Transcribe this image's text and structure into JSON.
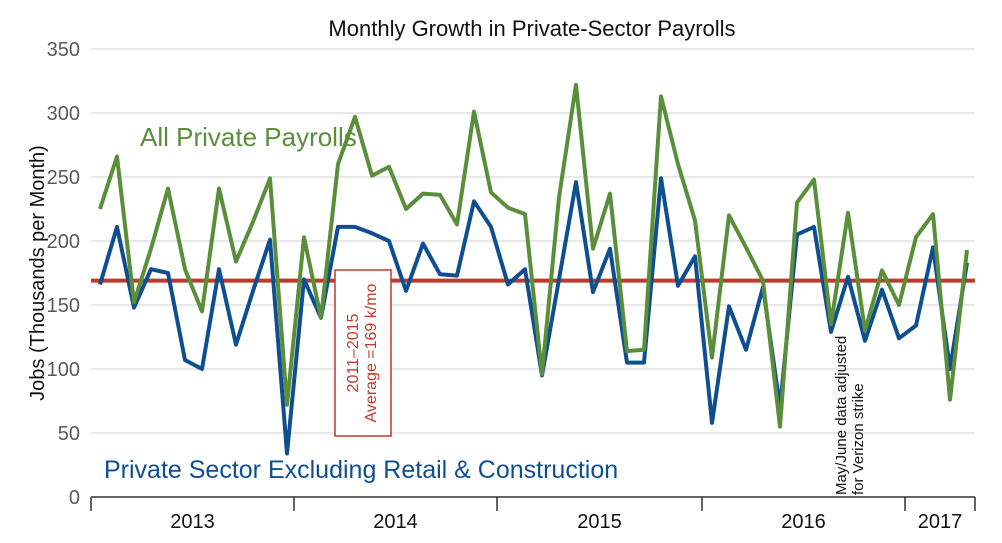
{
  "chart_data": {
    "type": "line",
    "title": "Monthly Growth in Private-Sector Payrolls",
    "ylabel": "Jobs (Thousands per Month)",
    "xlabel": "",
    "ylim": [
      0,
      350
    ],
    "yticks": [
      0,
      50,
      100,
      150,
      200,
      250,
      300,
      350
    ],
    "grid": true,
    "x_period_labels": [
      "2013",
      "2014",
      "2015",
      "2016",
      "2017"
    ],
    "series": [
      {
        "name": "All Private Payrolls",
        "color": "#5a8e3a",
        "values": [
          225,
          266,
          152,
          194,
          241,
          178,
          145,
          241,
          184,
          215,
          249,
          72,
          203,
          140,
          260,
          297,
          251,
          258,
          225,
          237,
          236,
          213,
          301,
          238,
          226,
          221,
          96,
          234,
          322,
          194,
          237,
          114,
          115,
          313,
          260,
          216,
          109,
          220,
          195,
          169,
          55,
          230,
          248,
          135,
          222,
          130,
          177,
          150,
          203,
          221,
          76,
          193
        ]
      },
      {
        "name": "Private Sector Excluding Retail & Construction",
        "color": "#0e4e91",
        "values": [
          166,
          211,
          148,
          178,
          175,
          107,
          100,
          178,
          119,
          161,
          201,
          34,
          170,
          140,
          211,
          211,
          206,
          200,
          161,
          198,
          174,
          173,
          231,
          211,
          166,
          178,
          95,
          170,
          246,
          160,
          194,
          105,
          105,
          249,
          165,
          188,
          58,
          149,
          115,
          164,
          70,
          205,
          211,
          129,
          172,
          122,
          162,
          124,
          134,
          195,
          100,
          183
        ]
      }
    ],
    "reference_line": {
      "value": 169,
      "color": "#c0392b",
      "label_line1": "2011–2015",
      "label_line2": "Average =169 k/mo"
    },
    "annotation": {
      "line1": "May/June data adjusted",
      "line2": "for Verizon strike"
    }
  }
}
